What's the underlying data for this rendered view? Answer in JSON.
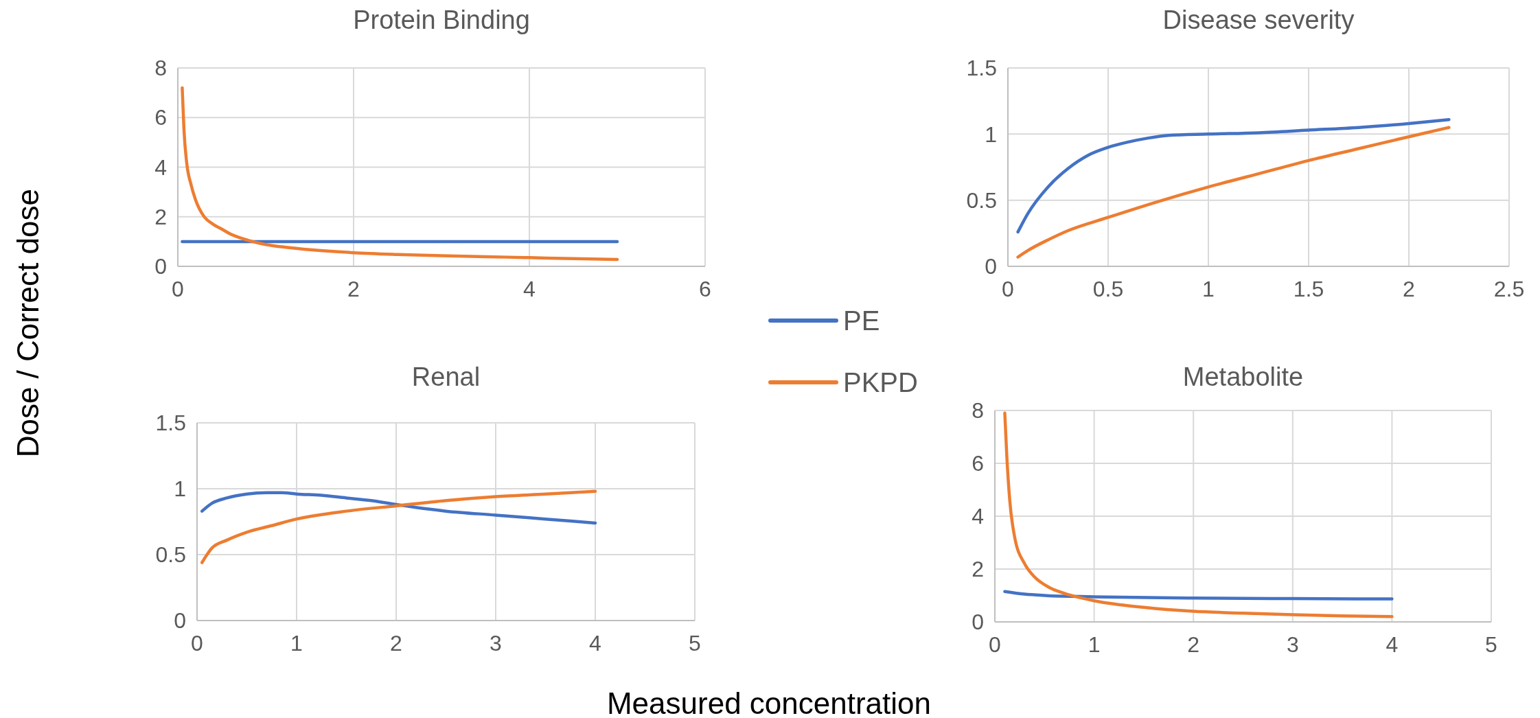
{
  "chart_data": [
    {
      "type": "line",
      "title": "Protein Binding",
      "ylabel": "Dose / Correct dose",
      "xlim": [
        0,
        6
      ],
      "xticks": [
        0,
        2,
        4,
        6
      ],
      "ylim": [
        0,
        8
      ],
      "yticks": [
        0,
        2,
        4,
        6,
        8
      ],
      "grid": true,
      "legend": "right",
      "series": [
        {
          "name": "PE",
          "color": "#4472c4",
          "x": [
            0.05,
            1,
            2,
            3,
            4,
            5
          ],
          "values": [
            1,
            1,
            1,
            1,
            1,
            1
          ]
        },
        {
          "name": "PKPD",
          "color": "#ed7d31",
          "x": [
            0.05,
            0.07,
            0.1,
            0.15,
            0.2,
            0.3,
            0.4,
            0.5,
            0.6,
            0.8,
            1,
            1.25,
            1.5,
            2,
            2.5,
            3,
            3.5,
            4,
            4.5,
            5
          ],
          "values": [
            7.2,
            5.5,
            4.2,
            3.3,
            2.7,
            2.0,
            1.7,
            1.5,
            1.3,
            1.05,
            0.88,
            0.76,
            0.67,
            0.55,
            0.48,
            0.43,
            0.39,
            0.35,
            0.31,
            0.28
          ]
        }
      ]
    },
    {
      "type": "line",
      "title": "Disease severity",
      "xlim": [
        0,
        2.5
      ],
      "xticks": [
        0,
        0.5,
        1,
        1.5,
        2,
        2.5
      ],
      "ylim": [
        0,
        1.5
      ],
      "yticks": [
        0,
        0.5,
        1,
        1.5
      ],
      "grid": true,
      "series": [
        {
          "color": "#4472c4",
          "x": [
            0.05,
            0.1,
            0.2,
            0.3,
            0.4,
            0.5,
            0.6,
            0.7,
            0.8,
            1,
            1.25,
            1.5,
            1.75,
            2,
            2.2
          ],
          "values": [
            0.26,
            0.4,
            0.6,
            0.74,
            0.84,
            0.9,
            0.94,
            0.97,
            0.99,
            1.0,
            1.01,
            1.03,
            1.05,
            1.08,
            1.11
          ]
        },
        {
          "color": "#ed7d31",
          "x": [
            0.05,
            0.1,
            0.2,
            0.3,
            0.5,
            0.75,
            1,
            1.25,
            1.5,
            1.75,
            2,
            2.2
          ],
          "values": [
            0.07,
            0.12,
            0.2,
            0.27,
            0.37,
            0.49,
            0.6,
            0.7,
            0.8,
            0.89,
            0.98,
            1.05
          ]
        }
      ]
    },
    {
      "type": "line",
      "title": "Renal",
      "xlabel": "Measured concentration",
      "xlim": [
        0,
        5
      ],
      "xticks": [
        0,
        1,
        2,
        3,
        4,
        5
      ],
      "ylim": [
        0,
        1.5
      ],
      "yticks": [
        0,
        0.5,
        1,
        1.5
      ],
      "grid": true,
      "series": [
        {
          "color": "#4472c4",
          "x": [
            0.05,
            0.15,
            0.3,
            0.5,
            0.7,
            0.85,
            1,
            1.25,
            1.5,
            1.75,
            2,
            2.5,
            3,
            3.5,
            4
          ],
          "values": [
            0.83,
            0.89,
            0.93,
            0.96,
            0.97,
            0.97,
            0.96,
            0.95,
            0.93,
            0.91,
            0.88,
            0.83,
            0.8,
            0.77,
            0.74
          ]
        },
        {
          "color": "#ed7d31",
          "x": [
            0.05,
            0.1,
            0.15,
            0.3,
            0.5,
            0.75,
            1,
            1.5,
            2,
            2.5,
            3,
            3.5,
            4
          ],
          "values": [
            0.44,
            0.5,
            0.55,
            0.61,
            0.67,
            0.72,
            0.77,
            0.83,
            0.87,
            0.91,
            0.94,
            0.96,
            0.98
          ]
        }
      ]
    },
    {
      "type": "line",
      "title": "Metabolite",
      "xlim": [
        0,
        5
      ],
      "xticks": [
        0,
        1,
        2,
        3,
        4,
        5
      ],
      "ylim": [
        0,
        8
      ],
      "yticks": [
        0,
        2,
        4,
        6,
        8
      ],
      "grid": true,
      "series": [
        {
          "color": "#4472c4",
          "x": [
            0.1,
            0.3,
            0.5,
            1,
            2,
            3,
            4
          ],
          "values": [
            1.15,
            1.05,
            1.0,
            0.95,
            0.9,
            0.88,
            0.87
          ]
        },
        {
          "color": "#ed7d31",
          "x": [
            0.1,
            0.12,
            0.15,
            0.2,
            0.3,
            0.4,
            0.55,
            0.7,
            0.8,
            1,
            1.5,
            2,
            2.5,
            3,
            3.5,
            4
          ],
          "values": [
            7.9,
            6.3,
            4.6,
            3.2,
            2.2,
            1.7,
            1.3,
            1.08,
            0.97,
            0.8,
            0.55,
            0.4,
            0.33,
            0.27,
            0.23,
            0.2
          ]
        }
      ]
    }
  ]
}
